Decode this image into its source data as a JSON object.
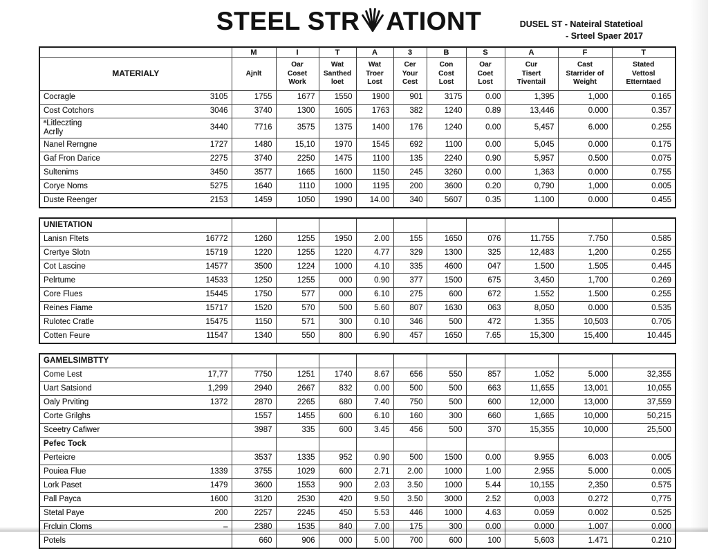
{
  "title": {
    "prefix": "STEEL STR",
    "suffix": "ATIONT"
  },
  "subtitle": {
    "line1": "DUSEL ST - Nateiral Statetioal",
    "line2": "- Srteel Spaer 2017"
  },
  "table": {
    "letter_row": [
      "",
      "M",
      "I",
      "T",
      "A",
      "3",
      "B",
      "S",
      "A",
      "F",
      "T"
    ],
    "columns": [
      "MATERIALY",
      "Ajnlt",
      "Oar\nCoset\nWork",
      "Wat\nSanthed\nloet",
      "Wat\nTroer\nLost",
      "Cer\nYour\nCest",
      "Con\nCost\nLost",
      "Oar\nCoet\nLost",
      "Cur\nTisert\nTiventail",
      "Cast\nStarrider of\nWeight",
      "Stated\nVettosl\nEtterntaed"
    ],
    "sections": [
      {
        "label": "",
        "rows": [
          {
            "name": "Cocragle",
            "values": [
              "3105",
              "1755",
              "1677",
              "1550",
              "1900",
              "901",
              "3175",
              "0.00",
              "1,395",
              "1,000",
              "0.165"
            ]
          },
          {
            "name": "Cost Cotchors",
            "values": [
              "3046",
              "3740",
              "1300",
              "1605",
              "1763",
              "382",
              "1240",
              "0.89",
              "13,446",
              "0.000",
              "0.357"
            ]
          },
          {
            "name": "ªLitleczting\nAcrlly",
            "values": [
              "3440",
              "7716",
              "3575",
              "1375",
              "1400",
              "176",
              "1240",
              "0.00",
              "5,457",
              "6.000",
              "0.255"
            ]
          },
          {
            "name": "Nanel Rerngne",
            "values": [
              "1727",
              "1480",
              "15,10",
              "1970",
              "1545",
              "692",
              "1100",
              "0.00",
              "5,045",
              "0.000",
              "0.175"
            ]
          },
          {
            "name": "Gaf Fron Darice",
            "values": [
              "2275",
              "3740",
              "2250",
              "1475",
              "1100",
              "135",
              "2240",
              "0.90",
              "5,957",
              "0.500",
              "0.075"
            ]
          },
          {
            "name": "Sultenims",
            "values": [
              "3450",
              "3577",
              "1665",
              "1600",
              "1150",
              "245",
              "3260",
              "0.00",
              "1,363",
              "0.000",
              "0.755"
            ]
          },
          {
            "name": "Corye Noms",
            "values": [
              "5275",
              "1640",
              "1110",
              "1000",
              "1195",
              "200",
              "3600",
              "0.20",
              "0,790",
              "1,000",
              "0.005"
            ]
          },
          {
            "name": "Duste Reenger",
            "values": [
              "2153",
              "1459",
              "1050",
              "1990",
              "14.00",
              "340",
              "5607",
              "0.35",
              "1.100",
              "0.000",
              "0.455"
            ]
          }
        ]
      },
      {
        "label": "UNIETATION",
        "rows": [
          {
            "name": "Lanisn Fltets",
            "values": [
              "16772",
              "1260",
              "1255",
              "1950",
              "2.00",
              "155",
              "1650",
              "076",
              "11.755",
              "7.750",
              "0.585"
            ]
          },
          {
            "name": "Crertye Slotn",
            "values": [
              "15719",
              "1220",
              "1255",
              "1220",
              "4.77",
              "329",
              "1300",
              "325",
              "12,483",
              "1,200",
              "0.255"
            ]
          },
          {
            "name": "Cot Lascine",
            "values": [
              "14577",
              "3500",
              "1224",
              "1000",
              "4.10",
              "335",
              "4600",
              "047",
              "1.500",
              "1.505",
              "0.445"
            ]
          },
          {
            "name": "Pelrtume",
            "values": [
              "14533",
              "1250",
              "1255",
              "000",
              "0.90",
              "377",
              "1500",
              "675",
              "3,450",
              "1,700",
              "0.269"
            ]
          },
          {
            "name": "Core Flues",
            "values": [
              "15445",
              "1750",
              "577",
              "000",
              "6.10",
              "275",
              "600",
              "672",
              "1.552",
              "1.500",
              "0.255"
            ]
          },
          {
            "name": "Reines Fiame",
            "values": [
              "15717",
              "1520",
              "570",
              "500",
              "5.60",
              "807",
              "1630",
              "063",
              "8,050",
              "0.000",
              "0.535"
            ]
          },
          {
            "name": "Rulotec Cratle",
            "values": [
              "15475",
              "1150",
              "571",
              "300",
              "0.10",
              "346",
              "500",
              "472",
              "1.355",
              "10,503",
              "0.705"
            ]
          },
          {
            "name": "Cotten Feure",
            "values": [
              "11547",
              "1340",
              "550",
              "800",
              "6.90",
              "457",
              "1650",
              "7.65",
              "15,300",
              "15,400",
              "10.445"
            ]
          }
        ]
      },
      {
        "label": "GAMELSIMBTTY",
        "rows": [
          {
            "name": "Come Lest",
            "values": [
              "17,77",
              "7750",
              "1251",
              "1740",
              "8.67",
              "656",
              "550",
              "857",
              "1.052",
              "5.000",
              "32,355"
            ]
          },
          {
            "name": "Uart Satsiond",
            "values": [
              "1,299",
              "2940",
              "2667",
              "832",
              "0.00",
              "500",
              "500",
              "663",
              "11,655",
              "13,001",
              "10,055"
            ]
          },
          {
            "name": "Oaly Prviting",
            "values": [
              "1372",
              "2870",
              "2265",
              "680",
              "7.40",
              "750",
              "500",
              "600",
              "12,000",
              "13,000",
              "37,559"
            ]
          },
          {
            "name": "Corte Grilghs",
            "values": [
              "",
              "1557",
              "1455",
              "600",
              "6.10",
              "160",
              "300",
              "660",
              "1,665",
              "10,000",
              "50,215"
            ]
          },
          {
            "name": "Sceetry Cafiwer",
            "values": [
              "",
              "3987",
              "335",
              "600",
              "3.45",
              "456",
              "500",
              "370",
              "15,355",
              "10,000",
              "25,500"
            ]
          }
        ]
      },
      {
        "label": "Pefec Tock",
        "rows": [
          {
            "name": "Perteicre",
            "values": [
              "",
              "3537",
              "1335",
              "952",
              "0.90",
              "500",
              "1500",
              "0.00",
              "9.955",
              "6.003",
              "0.005"
            ]
          },
          {
            "name": "Pouiea Flue",
            "values": [
              "1339",
              "3755",
              "1029",
              "600",
              "2.71",
              "2.00",
              "1000",
              "1.00",
              "2.955",
              "5.000",
              "0.005"
            ]
          },
          {
            "name": "Lork Paset",
            "values": [
              "1479",
              "3600",
              "1553",
              "900",
              "2.03",
              "3.50",
              "1000",
              "5.44",
              "10,155",
              "2,350",
              "0.575"
            ]
          },
          {
            "name": "Pall Payca",
            "values": [
              "1600",
              "3120",
              "2530",
              "420",
              "9.50",
              "3.50",
              "3000",
              "2.52",
              "0,003",
              "0.272",
              "0,775"
            ]
          },
          {
            "name": "Stetal Paye",
            "values": [
              "200",
              "2257",
              "2245",
              "450",
              "5.53",
              "446",
              "1000",
              "4.63",
              "0.059",
              "0.002",
              "0.525"
            ]
          },
          {
            "name": "Frcluin Cloms",
            "values": [
              "–",
              "2380",
              "1535",
              "840",
              "7.00",
              "175",
              "300",
              "0.00",
              "0.000",
              "1.007",
              "0.000"
            ]
          },
          {
            "name": "Potels",
            "values": [
              "",
              "660",
              "906",
              "000",
              "5.00",
              "700",
              "600",
              "100",
              "5,603",
              "1.471",
              "0.210"
            ]
          }
        ]
      }
    ]
  }
}
